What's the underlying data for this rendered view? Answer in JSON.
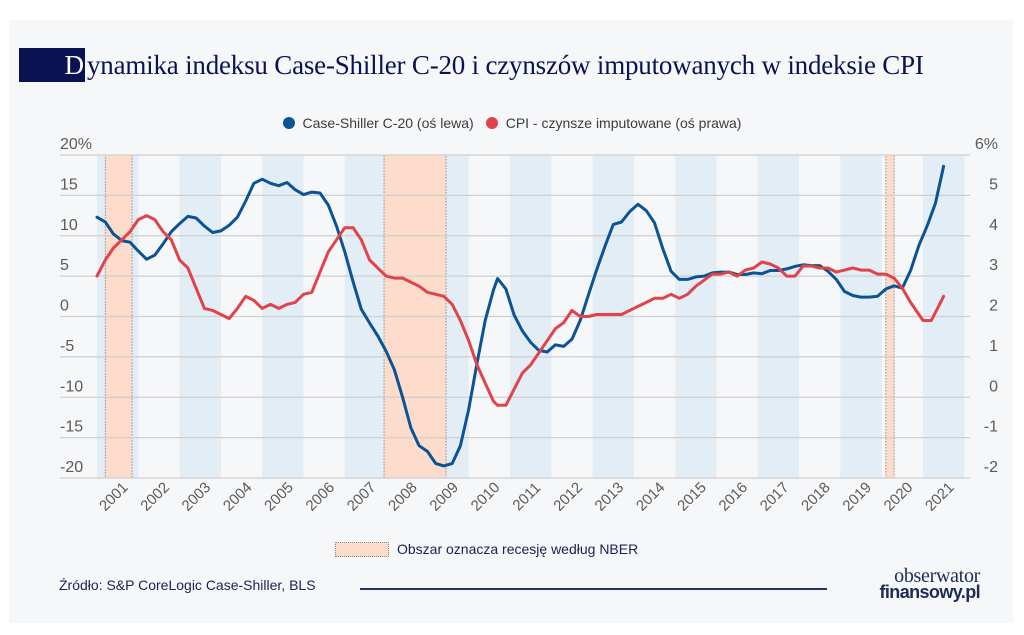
{
  "title": {
    "first_letter": "D",
    "rest": "ynamika indeksu Case-Shiller C-20 i czynszów imputowanych w indeksie CPI"
  },
  "legend": {
    "items": [
      {
        "label": "Case-Shiller C-20 (oś lewa)",
        "color": "#0b5394"
      },
      {
        "label": "CPI - czynsze imputowane (oś prawa)",
        "color": "#e0434a"
      }
    ]
  },
  "recession_legend": {
    "label": "Obszar oznacza recesję według NBER",
    "color": "#fddccb"
  },
  "footer": {
    "source": "Źródło: S&P CoreLogic Case-Shiller, BLS",
    "logo_line1": "obserwator",
    "logo_line2": "finansowy.pl"
  },
  "colors": {
    "title_navy": "#0a1352",
    "band_blue": "#e3edf6",
    "recession": "#fddccb",
    "grid": "#cfcfcf",
    "case_shiller": "#0b5394",
    "cpi": "#e0434a"
  },
  "chart_data": {
    "type": "line",
    "title": "Dynamika indeksu Case-Shiller C-20 i czynszów imputowanych w indeksie CPI",
    "x_range": [
      2001.0,
      2021.5
    ],
    "x_ticks": [
      "2001",
      "2002",
      "2003",
      "2004",
      "2005",
      "2006",
      "2007",
      "2008",
      "2009",
      "2010",
      "2011",
      "2012",
      "2013",
      "2014",
      "2015",
      "2016",
      "2017",
      "2018",
      "2019",
      "2020",
      "2021"
    ],
    "y_left": {
      "range": [
        -20,
        20
      ],
      "ticks": [
        "-20",
        "-15",
        "-10",
        "-5",
        "0",
        "5",
        "10",
        "15",
        "20%"
      ],
      "tick_values": [
        -20,
        -15,
        -10,
        -5,
        0,
        5,
        10,
        15,
        20
      ]
    },
    "y_right": {
      "range": [
        -2,
        6
      ],
      "ticks": [
        "-2",
        "-1",
        "0",
        "1",
        "2",
        "3",
        "4",
        "5",
        "6%"
      ],
      "tick_values": [
        -2,
        -1,
        0,
        1,
        2,
        3,
        4,
        5,
        6
      ]
    },
    "grid": true,
    "legend_position": "top-center",
    "shaded_year_bands": [
      2001,
      2003,
      2005,
      2007,
      2009,
      2011,
      2013,
      2015,
      2017,
      2019,
      2021
    ],
    "recessions": [
      {
        "start": 2001.2,
        "end": 2001.85
      },
      {
        "start": 2007.95,
        "end": 2009.45
      },
      {
        "start": 2020.1,
        "end": 2020.3
      }
    ],
    "series": [
      {
        "name": "Case-Shiller C-20 (oś lewa)",
        "axis": "left",
        "color": "#0b5394",
        "points": [
          [
            2001.0,
            12.3
          ],
          [
            2001.2,
            11.7
          ],
          [
            2001.4,
            10.2
          ],
          [
            2001.6,
            9.4
          ],
          [
            2001.8,
            9.2
          ],
          [
            2002.0,
            8.1
          ],
          [
            2002.2,
            7.1
          ],
          [
            2002.4,
            7.6
          ],
          [
            2002.6,
            9.0
          ],
          [
            2002.8,
            10.5
          ],
          [
            2003.0,
            11.5
          ],
          [
            2003.2,
            12.4
          ],
          [
            2003.4,
            12.2
          ],
          [
            2003.6,
            11.2
          ],
          [
            2003.8,
            10.4
          ],
          [
            2004.0,
            10.6
          ],
          [
            2004.2,
            11.3
          ],
          [
            2004.4,
            12.3
          ],
          [
            2004.6,
            14.3
          ],
          [
            2004.8,
            16.5
          ],
          [
            2005.0,
            17.0
          ],
          [
            2005.2,
            16.5
          ],
          [
            2005.4,
            16.2
          ],
          [
            2005.6,
            16.6
          ],
          [
            2005.8,
            15.7
          ],
          [
            2006.0,
            15.1
          ],
          [
            2006.2,
            15.4
          ],
          [
            2006.4,
            15.3
          ],
          [
            2006.6,
            13.8
          ],
          [
            2006.8,
            11.2
          ],
          [
            2007.0,
            8.0
          ],
          [
            2007.2,
            4.3
          ],
          [
            2007.4,
            0.9
          ],
          [
            2007.6,
            -0.8
          ],
          [
            2007.8,
            -2.4
          ],
          [
            2008.0,
            -4.3
          ],
          [
            2008.2,
            -6.6
          ],
          [
            2008.4,
            -10.0
          ],
          [
            2008.6,
            -13.8
          ],
          [
            2008.8,
            -16.0
          ],
          [
            2009.0,
            -16.7
          ],
          [
            2009.2,
            -18.2
          ],
          [
            2009.4,
            -18.5
          ],
          [
            2009.6,
            -18.2
          ],
          [
            2009.8,
            -16.0
          ],
          [
            2010.0,
            -11.5
          ],
          [
            2010.2,
            -5.8
          ],
          [
            2010.4,
            -0.5
          ],
          [
            2010.6,
            3.3
          ],
          [
            2010.7,
            4.7
          ],
          [
            2010.9,
            3.4
          ],
          [
            2011.1,
            0.2
          ],
          [
            2011.3,
            -1.8
          ],
          [
            2011.5,
            -3.2
          ],
          [
            2011.7,
            -4.2
          ],
          [
            2011.9,
            -4.4
          ],
          [
            2012.1,
            -3.5
          ],
          [
            2012.3,
            -3.7
          ],
          [
            2012.5,
            -2.8
          ],
          [
            2012.7,
            -0.5
          ],
          [
            2012.9,
            2.7
          ],
          [
            2013.1,
            5.8
          ],
          [
            2013.3,
            8.7
          ],
          [
            2013.5,
            11.4
          ],
          [
            2013.7,
            11.7
          ],
          [
            2013.9,
            13.0
          ],
          [
            2014.1,
            13.9
          ],
          [
            2014.3,
            13.1
          ],
          [
            2014.5,
            11.6
          ],
          [
            2014.7,
            8.4
          ],
          [
            2014.9,
            5.6
          ],
          [
            2015.1,
            4.6
          ],
          [
            2015.3,
            4.6
          ],
          [
            2015.5,
            4.9
          ],
          [
            2015.7,
            5.0
          ],
          [
            2015.9,
            5.4
          ],
          [
            2016.1,
            5.5
          ],
          [
            2016.3,
            5.5
          ],
          [
            2016.5,
            5.2
          ],
          [
            2016.7,
            5.2
          ],
          [
            2016.9,
            5.4
          ],
          [
            2017.1,
            5.3
          ],
          [
            2017.3,
            5.7
          ],
          [
            2017.5,
            5.7
          ],
          [
            2017.7,
            5.9
          ],
          [
            2017.9,
            6.2
          ],
          [
            2018.1,
            6.4
          ],
          [
            2018.3,
            6.3
          ],
          [
            2018.5,
            6.3
          ],
          [
            2018.7,
            5.6
          ],
          [
            2018.9,
            4.6
          ],
          [
            2019.1,
            3.1
          ],
          [
            2019.3,
            2.6
          ],
          [
            2019.5,
            2.4
          ],
          [
            2019.7,
            2.4
          ],
          [
            2019.9,
            2.5
          ],
          [
            2020.1,
            3.4
          ],
          [
            2020.3,
            3.8
          ],
          [
            2020.5,
            3.5
          ],
          [
            2020.7,
            5.7
          ],
          [
            2020.9,
            8.8
          ],
          [
            2021.1,
            11.2
          ],
          [
            2021.3,
            14.0
          ],
          [
            2021.5,
            18.6
          ]
        ]
      },
      {
        "name": "CPI - czynsze imputowane (oś prawa)",
        "axis": "right",
        "color": "#e0434a",
        "points": [
          [
            2001.0,
            3.0
          ],
          [
            2001.2,
            3.4
          ],
          [
            2001.4,
            3.7
          ],
          [
            2001.6,
            3.9
          ],
          [
            2001.8,
            4.1
          ],
          [
            2002.0,
            4.4
          ],
          [
            2002.2,
            4.5
          ],
          [
            2002.4,
            4.4
          ],
          [
            2002.6,
            4.1
          ],
          [
            2002.8,
            3.9
          ],
          [
            2003.0,
            3.4
          ],
          [
            2003.2,
            3.2
          ],
          [
            2003.4,
            2.7
          ],
          [
            2003.6,
            2.2
          ],
          [
            2003.8,
            2.15
          ],
          [
            2004.0,
            2.05
          ],
          [
            2004.2,
            1.95
          ],
          [
            2004.4,
            2.2
          ],
          [
            2004.6,
            2.5
          ],
          [
            2004.8,
            2.4
          ],
          [
            2005.0,
            2.2
          ],
          [
            2005.2,
            2.3
          ],
          [
            2005.4,
            2.2
          ],
          [
            2005.6,
            2.3
          ],
          [
            2005.8,
            2.35
          ],
          [
            2006.0,
            2.55
          ],
          [
            2006.2,
            2.6
          ],
          [
            2006.4,
            3.1
          ],
          [
            2006.6,
            3.6
          ],
          [
            2006.8,
            3.9
          ],
          [
            2007.0,
            4.2
          ],
          [
            2007.2,
            4.2
          ],
          [
            2007.4,
            3.9
          ],
          [
            2007.6,
            3.4
          ],
          [
            2007.8,
            3.2
          ],
          [
            2008.0,
            3.0
          ],
          [
            2008.2,
            2.95
          ],
          [
            2008.4,
            2.95
          ],
          [
            2008.6,
            2.85
          ],
          [
            2008.8,
            2.75
          ],
          [
            2009.0,
            2.6
          ],
          [
            2009.2,
            2.55
          ],
          [
            2009.4,
            2.5
          ],
          [
            2009.6,
            2.3
          ],
          [
            2009.8,
            1.9
          ],
          [
            2010.0,
            1.4
          ],
          [
            2010.2,
            0.8
          ],
          [
            2010.4,
            0.35
          ],
          [
            2010.6,
            -0.1
          ],
          [
            2010.7,
            -0.2
          ],
          [
            2010.9,
            -0.2
          ],
          [
            2011.1,
            0.2
          ],
          [
            2011.3,
            0.6
          ],
          [
            2011.5,
            0.8
          ],
          [
            2011.7,
            1.1
          ],
          [
            2011.9,
            1.4
          ],
          [
            2012.1,
            1.7
          ],
          [
            2012.3,
            1.85
          ],
          [
            2012.5,
            2.15
          ],
          [
            2012.7,
            2.0
          ],
          [
            2012.9,
            2.0
          ],
          [
            2013.1,
            2.05
          ],
          [
            2013.3,
            2.05
          ],
          [
            2013.5,
            2.05
          ],
          [
            2013.7,
            2.05
          ],
          [
            2013.9,
            2.15
          ],
          [
            2014.1,
            2.25
          ],
          [
            2014.3,
            2.35
          ],
          [
            2014.5,
            2.45
          ],
          [
            2014.7,
            2.45
          ],
          [
            2014.9,
            2.55
          ],
          [
            2015.1,
            2.45
          ],
          [
            2015.3,
            2.55
          ],
          [
            2015.5,
            2.75
          ],
          [
            2015.7,
            2.9
          ],
          [
            2015.9,
            3.05
          ],
          [
            2016.1,
            3.05
          ],
          [
            2016.3,
            3.1
          ],
          [
            2016.5,
            3.0
          ],
          [
            2016.7,
            3.15
          ],
          [
            2016.9,
            3.2
          ],
          [
            2017.1,
            3.35
          ],
          [
            2017.3,
            3.3
          ],
          [
            2017.5,
            3.2
          ],
          [
            2017.7,
            3.0
          ],
          [
            2017.9,
            3.0
          ],
          [
            2018.1,
            3.25
          ],
          [
            2018.3,
            3.25
          ],
          [
            2018.5,
            3.2
          ],
          [
            2018.7,
            3.2
          ],
          [
            2018.9,
            3.1
          ],
          [
            2019.1,
            3.15
          ],
          [
            2019.3,
            3.2
          ],
          [
            2019.5,
            3.15
          ],
          [
            2019.7,
            3.15
          ],
          [
            2019.9,
            3.05
          ],
          [
            2020.1,
            3.05
          ],
          [
            2020.3,
            2.95
          ],
          [
            2020.5,
            2.7
          ],
          [
            2020.7,
            2.35
          ],
          [
            2020.9,
            2.05
          ],
          [
            2021.0,
            1.9
          ],
          [
            2021.2,
            1.9
          ],
          [
            2021.4,
            2.3
          ],
          [
            2021.5,
            2.5
          ]
        ]
      }
    ]
  }
}
